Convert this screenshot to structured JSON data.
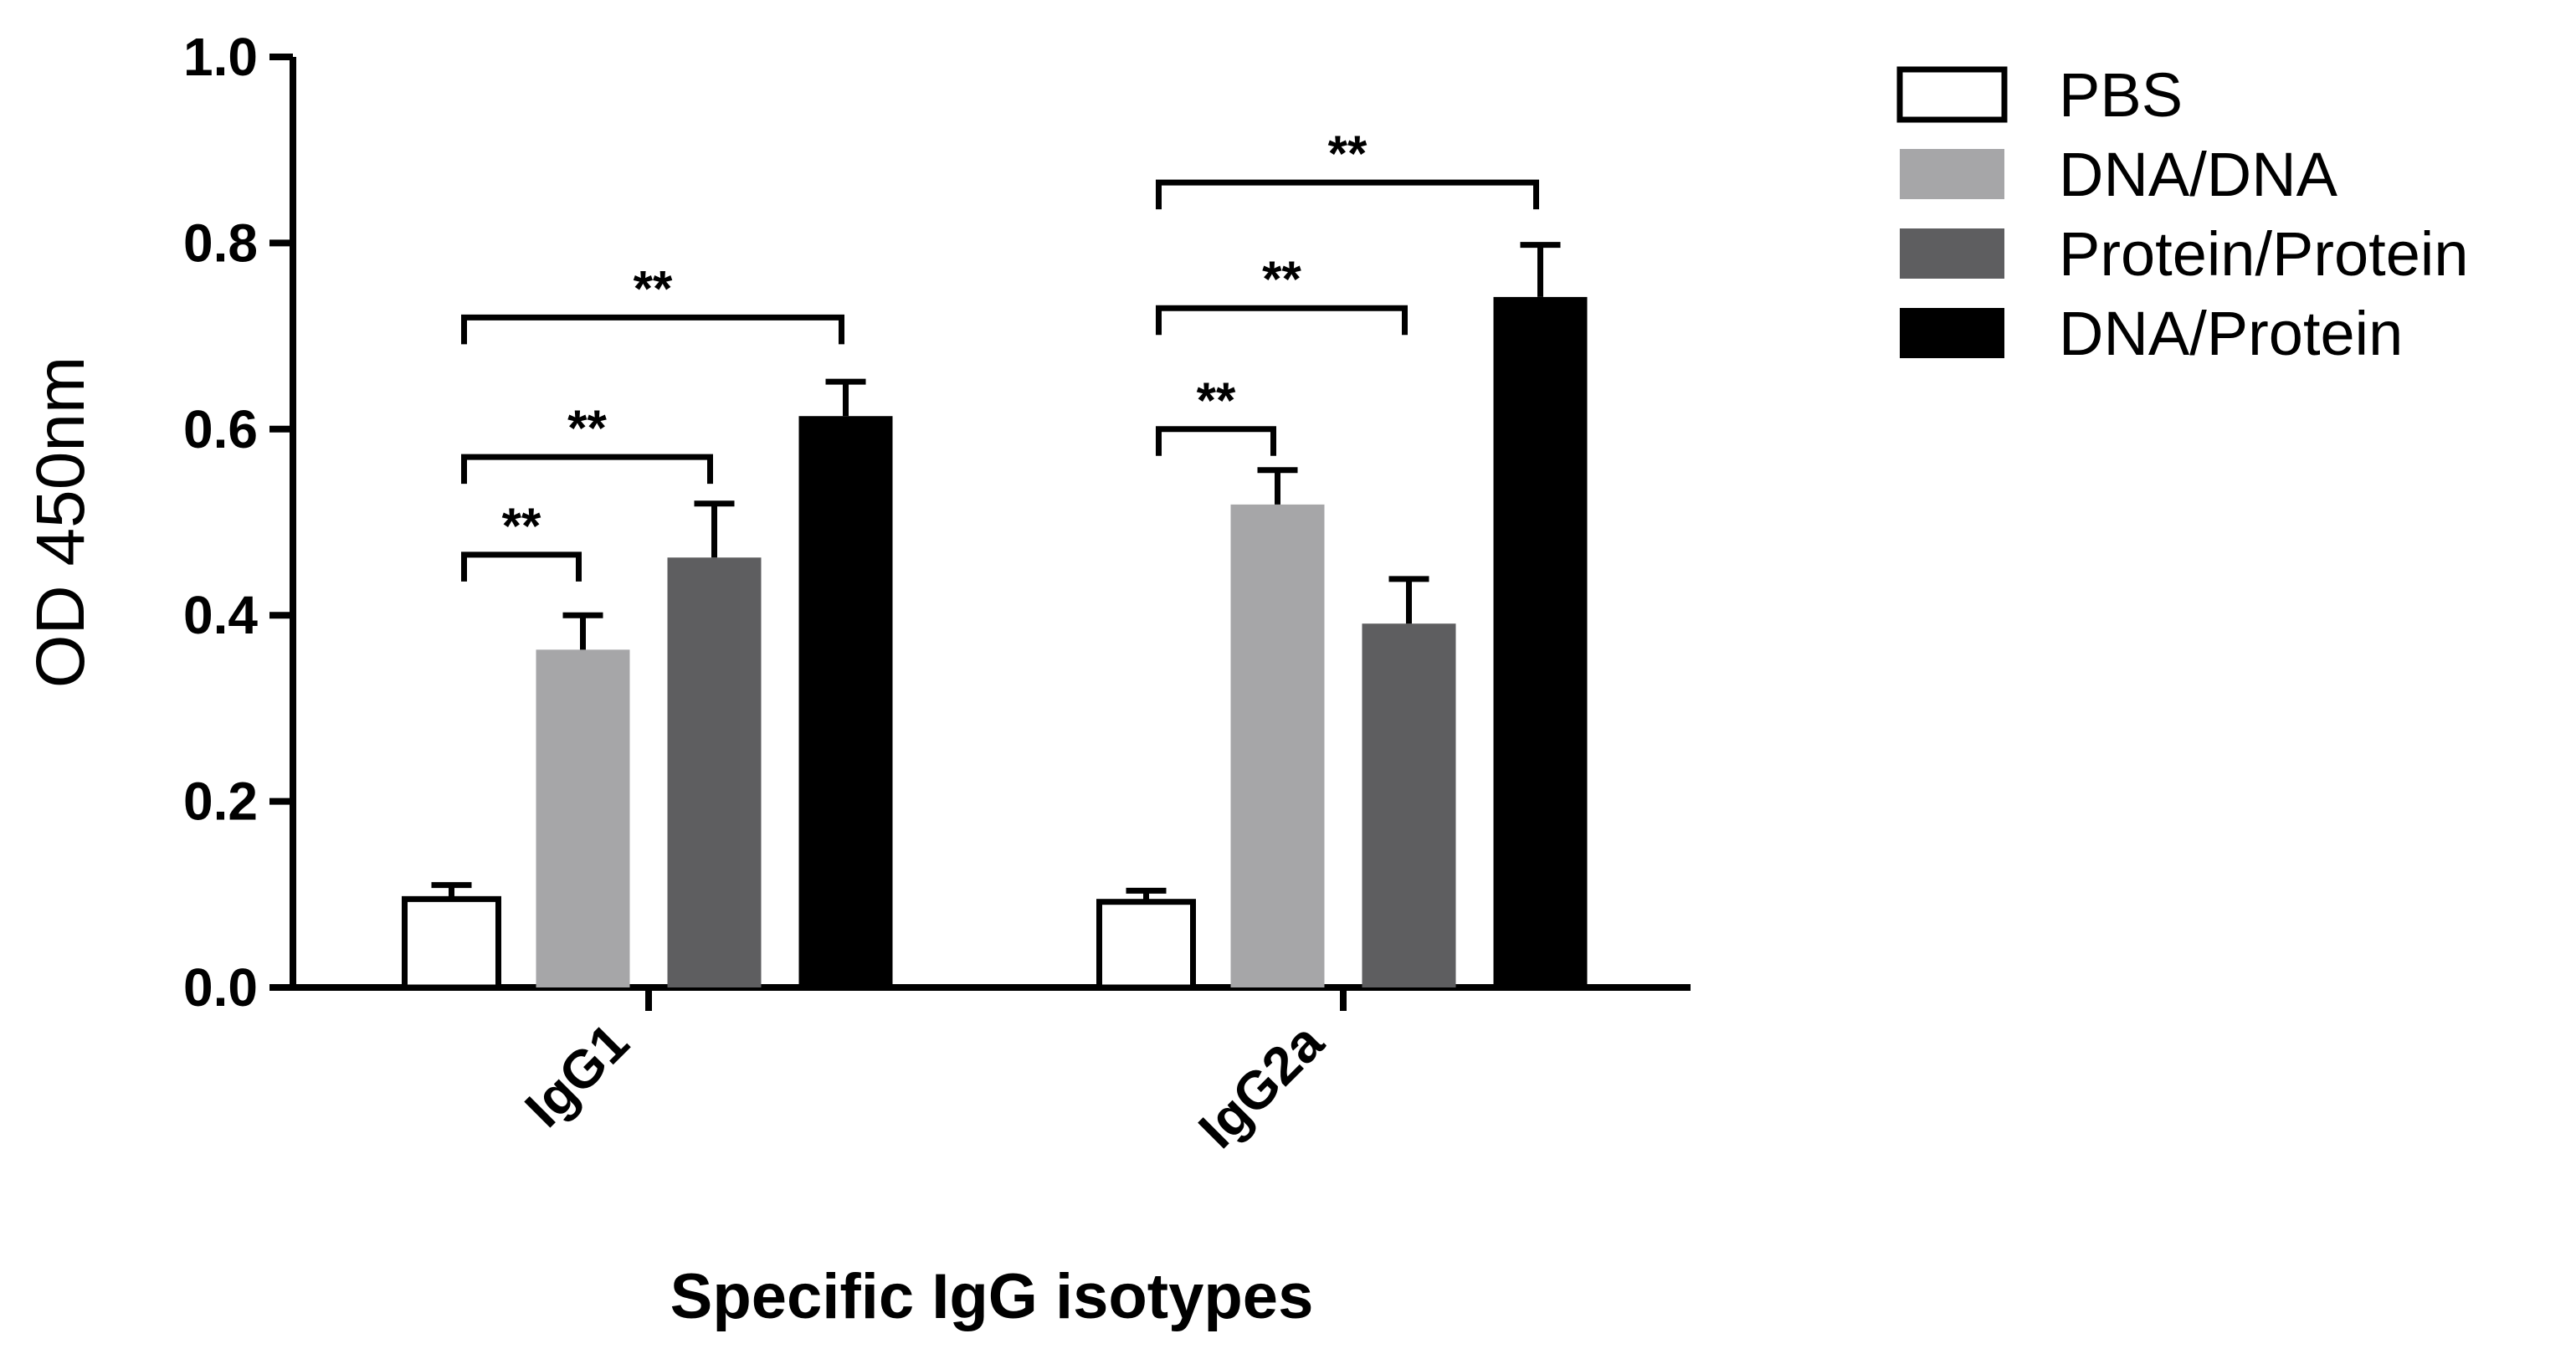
{
  "chart_data": {
    "type": "bar",
    "title": "",
    "xlabel": "Specific IgG isotypes",
    "ylabel": "OD 450nm",
    "ylim": [
      0,
      1.0
    ],
    "yticks": [
      "0.0",
      "0.2",
      "0.4",
      "0.6",
      "0.8",
      "1.0"
    ],
    "categories": [
      "IgG1",
      "IgG2a"
    ],
    "series": [
      {
        "name": "PBS",
        "color": "#ffffff",
        "values": [
          0.095,
          0.092
        ],
        "errors": [
          0.015,
          0.012
        ]
      },
      {
        "name": "DNA/DNA",
        "color": "#a6a6a8",
        "values": [
          0.363,
          0.519
        ],
        "errors": [
          0.037,
          0.037
        ]
      },
      {
        "name": "Protein/Protein",
        "color": "#5e5e60",
        "values": [
          0.462,
          0.391
        ],
        "errors": [
          0.058,
          0.048
        ]
      },
      {
        "name": "DNA/Protein",
        "color": "#000000",
        "values": [
          0.614,
          0.742
        ],
        "errors": [
          0.037,
          0.056
        ]
      }
    ],
    "significance": [
      {
        "category": "IgG1",
        "from": "PBS",
        "to": "DNA/DNA",
        "label": "**"
      },
      {
        "category": "IgG1",
        "from": "PBS",
        "to": "Protein/Protein",
        "label": "**"
      },
      {
        "category": "IgG1",
        "from": "PBS",
        "to": "DNA/Protein",
        "label": "**"
      },
      {
        "category": "IgG2a",
        "from": "PBS",
        "to": "DNA/DNA",
        "label": "**"
      },
      {
        "category": "IgG2a",
        "from": "PBS",
        "to": "Protein/Protein",
        "label": "**"
      },
      {
        "category": "IgG2a",
        "from": "PBS",
        "to": "DNA/Protein",
        "label": "**"
      }
    ],
    "legend_position": "right"
  }
}
